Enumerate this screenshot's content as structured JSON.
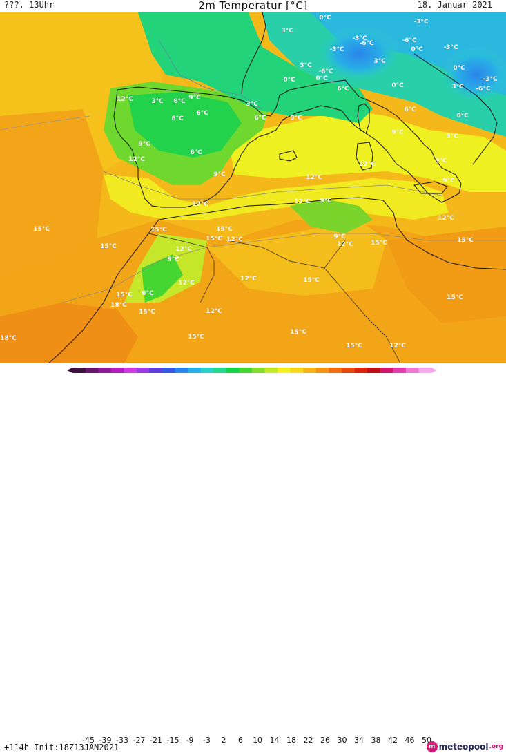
{
  "header": {
    "left_text": "???, 13Uhr",
    "title": "2m Temperatur [°C]",
    "date": "18. Januar 2021"
  },
  "footer": {
    "init_text": "+114h Init:18Z13JAN2021",
    "logo_text": "meteopool",
    "logo_tld": ".org"
  },
  "color_scale": {
    "ticks": [
      "-45",
      "-39",
      "-33",
      "-27",
      "-21",
      "-15",
      "-9",
      "-3",
      "2",
      "6",
      "10",
      "14",
      "18",
      "22",
      "26",
      "30",
      "34",
      "38",
      "42",
      "46",
      "50"
    ],
    "colors": [
      "#3c0f3f",
      "#63156a",
      "#8c1a96",
      "#b21dc0",
      "#cc39e0",
      "#9a3ce6",
      "#5c3fe0",
      "#3457e5",
      "#2b84ea",
      "#28aee6",
      "#2bd2c8",
      "#23d88c",
      "#16d24a",
      "#46d632",
      "#86dd30",
      "#c2e82a",
      "#f2f020",
      "#f7d61e",
      "#f5b419",
      "#f39214",
      "#ef6c10",
      "#e8480e",
      "#de220e",
      "#c00d14",
      "#d0156a",
      "#e03ca8",
      "#ee78d2",
      "#f4a6ea"
    ]
  },
  "map": {
    "temperature_labels": [
      {
        "text": "0°C"
      },
      {
        "text": "3°C"
      },
      {
        "text": "-3°C"
      },
      {
        "text": "-6°C"
      },
      {
        "text": "-3°C"
      },
      {
        "text": "-6°C"
      },
      {
        "text": "-3°C"
      },
      {
        "text": "0°C"
      },
      {
        "text": "3°C"
      },
      {
        "text": "-3°C"
      },
      {
        "text": "3°C"
      },
      {
        "text": "-6°C"
      },
      {
        "text": "0°C"
      },
      {
        "text": "0°C"
      },
      {
        "text": "0°C"
      },
      {
        "text": "-3°C"
      },
      {
        "text": "6°C"
      },
      {
        "text": "0°C"
      },
      {
        "text": "3°C"
      },
      {
        "text": "-6°C"
      },
      {
        "text": "12°C"
      },
      {
        "text": "3°C"
      },
      {
        "text": "6°C"
      },
      {
        "text": "9°C"
      },
      {
        "text": "3°C"
      },
      {
        "text": "6°C"
      },
      {
        "text": "6°C"
      },
      {
        "text": "6°C"
      },
      {
        "text": "9°C"
      },
      {
        "text": "6°C"
      },
      {
        "text": "6°C"
      },
      {
        "text": "9°C"
      },
      {
        "text": "9°C"
      },
      {
        "text": "3°C"
      },
      {
        "text": "6°C"
      },
      {
        "text": "12°C"
      },
      {
        "text": "9°C"
      },
      {
        "text": "12°C"
      },
      {
        "text": "9°C"
      },
      {
        "text": "12°C"
      },
      {
        "text": "9°C"
      },
      {
        "text": "12°C"
      },
      {
        "text": "12°C"
      },
      {
        "text": "9°C"
      },
      {
        "text": "15°C"
      },
      {
        "text": "15°C"
      },
      {
        "text": "15°C"
      },
      {
        "text": "12°C"
      },
      {
        "text": "9°C"
      },
      {
        "text": "12°C"
      },
      {
        "text": "15°C"
      },
      {
        "text": "15°C"
      },
      {
        "text": "15°C"
      },
      {
        "text": "12°C"
      },
      {
        "text": "12°C"
      },
      {
        "text": "15°C"
      },
      {
        "text": "9°C"
      },
      {
        "text": "12°C"
      },
      {
        "text": "15°C"
      },
      {
        "text": "12°C"
      },
      {
        "text": "6°C"
      },
      {
        "text": "15°C"
      },
      {
        "text": "15°C"
      },
      {
        "text": "18°C"
      },
      {
        "text": "15°C"
      },
      {
        "text": "12°C"
      },
      {
        "text": "15°C"
      },
      {
        "text": "15°C"
      },
      {
        "text": "18°C"
      },
      {
        "text": "15°C"
      },
      {
        "text": "12°C"
      }
    ]
  }
}
